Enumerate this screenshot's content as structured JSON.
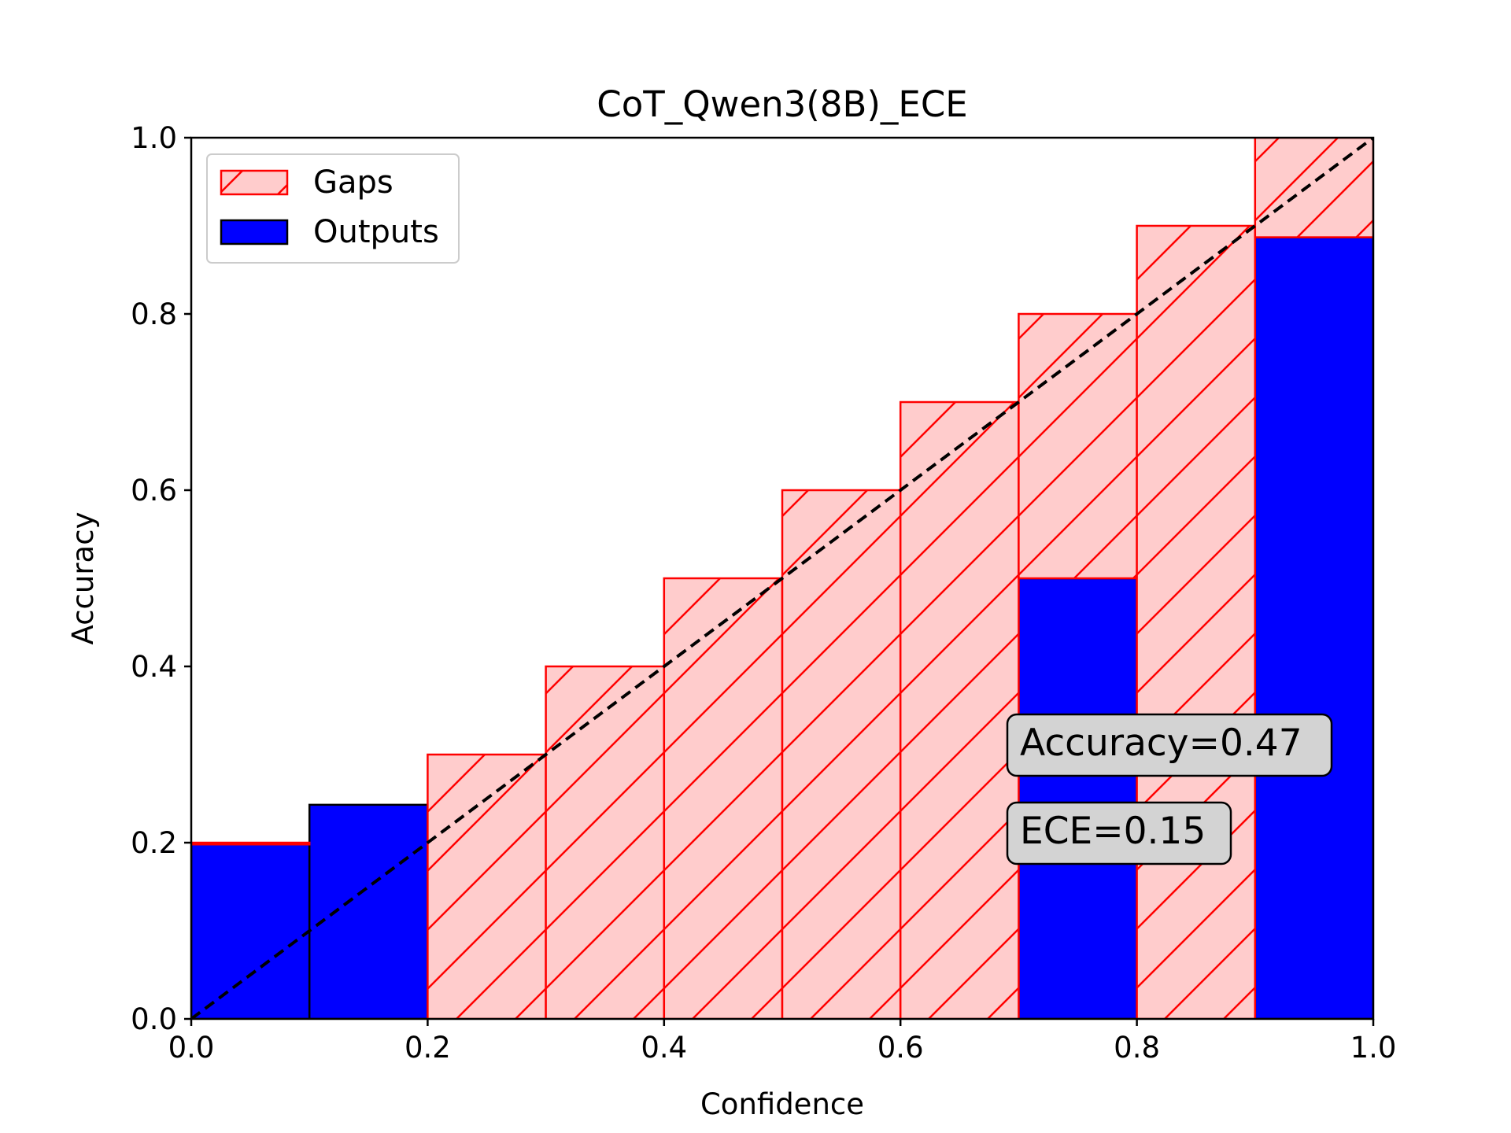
{
  "chart_data": {
    "type": "bar",
    "title": "CoT_Qwen3(8B)_ECE",
    "xlabel": "Confidence",
    "ylabel": "Accuracy",
    "xlim": [
      0,
      1
    ],
    "ylim": [
      0,
      1
    ],
    "xticks": [
      "0.0",
      "0.2",
      "0.4",
      "0.6",
      "0.8",
      "1.0"
    ],
    "yticks": [
      "0.0",
      "0.2",
      "0.4",
      "0.6",
      "0.8",
      "1.0"
    ],
    "bins": [
      {
        "start": 0.0,
        "end": 0.1
      },
      {
        "start": 0.1,
        "end": 0.2
      },
      {
        "start": 0.2,
        "end": 0.3
      },
      {
        "start": 0.3,
        "end": 0.4
      },
      {
        "start": 0.4,
        "end": 0.5
      },
      {
        "start": 0.5,
        "end": 0.6
      },
      {
        "start": 0.6,
        "end": 0.7
      },
      {
        "start": 0.7,
        "end": 0.8
      },
      {
        "start": 0.8,
        "end": 0.9
      },
      {
        "start": 0.9,
        "end": 1.0
      }
    ],
    "series": [
      {
        "name": "Outputs",
        "color": "#0000ff",
        "edge_color": "#000000",
        "values": [
          0.198,
          0.243,
          0,
          0,
          0,
          0,
          0,
          0.5,
          0,
          0.887
        ]
      },
      {
        "name": "Gaps",
        "color": "#ffcccc",
        "edge_color": "#ff0000",
        "hatch": "diagonal",
        "bottom": [
          0.198,
          0.243,
          0,
          0,
          0,
          0,
          0,
          0.5,
          0,
          0.887
        ],
        "top": [
          0.2,
          0.2,
          0.3,
          0.4,
          0.5,
          0.6,
          0.7,
          0.8,
          0.9,
          1.0
        ]
      }
    ],
    "reference_line": {
      "from": [
        0,
        0
      ],
      "to": [
        1,
        1
      ],
      "style": "dashed",
      "color": "#000000"
    },
    "legend": {
      "placement": "top-left",
      "entries": [
        "Gaps",
        "Outputs"
      ]
    },
    "annotations": [
      {
        "text": "Accuracy=0.47",
        "x": 0.7,
        "y": 0.315
      },
      {
        "text": "ECE=0.15",
        "x": 0.7,
        "y": 0.215
      }
    ],
    "grid": false
  }
}
